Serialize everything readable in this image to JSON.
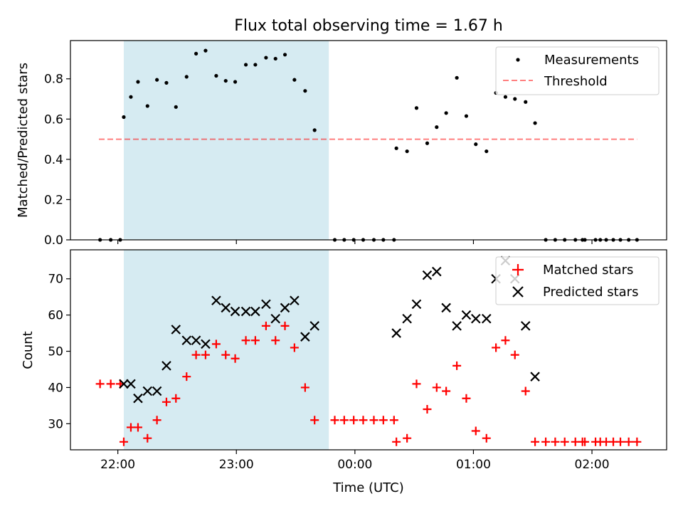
{
  "figure": {
    "title": "Flux total observing time = 1.67 h"
  },
  "chart_data": [
    {
      "type": "scatter",
      "ylabel": "Matched/Predicted stars",
      "xlabel": "",
      "x_unit": "hours since 00:00 UTC",
      "xlim": [
        -2.4,
        2.63
      ],
      "ylim": [
        0,
        0.99
      ],
      "yticks": [
        0.0,
        0.2,
        0.4,
        0.6,
        0.8
      ],
      "ytick_labels": [
        "0.0",
        "0.2",
        "0.4",
        "0.6",
        "0.8"
      ],
      "shaded_span": [
        -1.95,
        -0.22
      ],
      "shade_color": "#add8e6",
      "legend_position": "top-right",
      "threshold": {
        "name": "Threshold",
        "value": 0.5,
        "x_range": [
          -2.16,
          2.38
        ],
        "color": "#ff0000",
        "alpha": 0.5,
        "style": "dashed"
      },
      "series": [
        {
          "name": "Measurements",
          "color": "#000000",
          "marker": "dot",
          "x": [
            -2.15,
            -2.06,
            -1.98,
            -1.95,
            -1.89,
            -1.83,
            -1.75,
            -1.67,
            -1.59,
            -1.51,
            -1.42,
            -1.34,
            -1.26,
            -1.17,
            -1.09,
            -1.01,
            -0.92,
            -0.84,
            -0.75,
            -0.67,
            -0.59,
            -0.51,
            -0.42,
            -0.34,
            -0.17,
            -0.09,
            -0.01,
            0.07,
            0.16,
            0.24,
            0.33,
            0.35,
            0.44,
            0.52,
            0.61,
            0.69,
            0.77,
            0.86,
            0.94,
            1.02,
            1.11,
            1.19,
            1.27,
            1.35,
            1.44,
            1.52,
            1.61,
            1.69,
            1.77,
            1.86,
            1.92,
            1.94,
            2.03,
            2.07,
            2.12,
            2.18,
            2.24,
            2.31,
            2.38
          ],
          "y": [
            0.0,
            0.0,
            0.0,
            0.61,
            0.71,
            0.785,
            0.665,
            0.795,
            0.78,
            0.66,
            0.81,
            0.925,
            0.94,
            0.815,
            0.79,
            0.785,
            0.87,
            0.87,
            0.905,
            0.9,
            0.92,
            0.795,
            0.74,
            0.545,
            0.0,
            0.0,
            0.0,
            0.0,
            0.0,
            0.0,
            0.0,
            0.455,
            0.44,
            0.655,
            0.48,
            0.56,
            0.63,
            0.805,
            0.615,
            0.475,
            0.44,
            0.73,
            0.71,
            0.7,
            0.685,
            0.58,
            0.0,
            0.0,
            0.0,
            0.0,
            0.0,
            0.0,
            0.0,
            0.0,
            0.0,
            0.0,
            0.0,
            0.0,
            0.0
          ]
        }
      ]
    },
    {
      "type": "scatter",
      "ylabel": "Count",
      "xlabel": "Time (UTC)",
      "x_unit": "hours since 00:00 UTC",
      "xlim": [
        -2.4,
        2.63
      ],
      "ylim": [
        22.8,
        78.0
      ],
      "yticks": [
        30,
        40,
        50,
        60,
        70
      ],
      "ytick_labels": [
        "30",
        "40",
        "50",
        "60",
        "70"
      ],
      "xticks": [
        -2,
        -1,
        0,
        1,
        2
      ],
      "xtick_labels": [
        "22:00",
        "23:00",
        "00:00",
        "01:00",
        "02:00"
      ],
      "shaded_span": [
        -1.95,
        -0.22
      ],
      "shade_color": "#add8e6",
      "legend_position": "top-right",
      "series": [
        {
          "name": "Matched stars",
          "color": "#ff0000",
          "marker": "plus",
          "x": [
            -2.15,
            -2.06,
            -1.98,
            -1.95,
            -1.89,
            -1.83,
            -1.75,
            -1.67,
            -1.59,
            -1.51,
            -1.42,
            -1.34,
            -1.26,
            -1.17,
            -1.09,
            -1.01,
            -0.92,
            -0.84,
            -0.75,
            -0.67,
            -0.59,
            -0.51,
            -0.42,
            -0.34,
            -0.17,
            -0.09,
            -0.01,
            0.07,
            0.16,
            0.24,
            0.33,
            0.35,
            0.44,
            0.52,
            0.61,
            0.69,
            0.77,
            0.86,
            0.94,
            1.02,
            1.11,
            1.19,
            1.27,
            1.35,
            1.44,
            1.52,
            1.61,
            1.69,
            1.77,
            1.86,
            1.92,
            1.94,
            2.03,
            2.07,
            2.12,
            2.18,
            2.24,
            2.31,
            2.38
          ],
          "y": [
            41,
            41,
            41,
            25,
            29,
            29,
            26,
            31,
            36,
            37,
            43,
            49,
            49,
            52,
            49,
            48,
            53,
            53,
            57,
            53,
            57,
            51,
            40,
            31,
            31,
            31,
            31,
            31,
            31,
            31,
            31,
            25,
            26,
            41,
            34,
            40,
            39,
            46,
            37,
            28,
            26,
            51,
            53,
            49,
            39,
            25,
            25,
            25,
            25,
            25,
            25,
            25,
            25,
            25,
            25,
            25,
            25,
            25,
            25
          ]
        },
        {
          "name": "Predicted stars",
          "color": "#000000",
          "marker": "x",
          "x": [
            -1.95,
            -1.89,
            -1.83,
            -1.75,
            -1.67,
            -1.59,
            -1.51,
            -1.42,
            -1.34,
            -1.26,
            -1.17,
            -1.09,
            -1.01,
            -0.92,
            -0.84,
            -0.75,
            -0.67,
            -0.59,
            -0.51,
            -0.42,
            -0.34,
            0.35,
            0.44,
            0.52,
            0.61,
            0.69,
            0.77,
            0.86,
            0.94,
            1.02,
            1.11,
            1.19,
            1.27,
            1.35,
            1.44,
            1.52
          ],
          "y": [
            41,
            41,
            37,
            39,
            39,
            46,
            56,
            53,
            53,
            52,
            64,
            62,
            61,
            61,
            61,
            63,
            59,
            62,
            64,
            54,
            57,
            55,
            59,
            63,
            71,
            72,
            62,
            57,
            60,
            59,
            59,
            70,
            75,
            70,
            57,
            43
          ]
        }
      ]
    }
  ]
}
